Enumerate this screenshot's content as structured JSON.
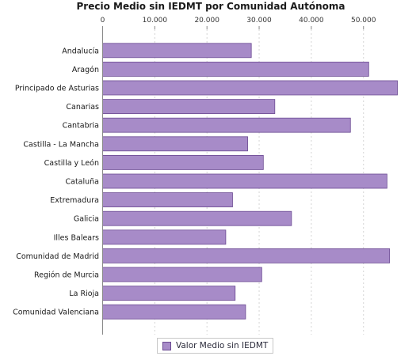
{
  "chart_data": {
    "type": "bar",
    "orientation": "horizontal",
    "title": "Precio Medio sin IEDMT por Comunidad Autónoma",
    "categories": [
      "Andalucía",
      "Aragón",
      "Principado de Asturias",
      "Canarias",
      "Cantabria",
      "Castilla - La Mancha",
      "Castilla y León",
      "Cataluña",
      "Extremadura",
      "Galicia",
      "Illes Balears",
      "Comunidad de Madrid",
      "Región de Murcia",
      "La Rioja",
      "Comunidad Valenciana"
    ],
    "series": [
      {
        "name": "Valor Medio sin IEDMT",
        "values": [
          28500,
          51000,
          56500,
          33000,
          47500,
          27800,
          30800,
          54500,
          24900,
          36200,
          23600,
          55000,
          30500,
          25400,
          27400
        ]
      }
    ],
    "xlim": [
      0,
      59000
    ],
    "xticks": [
      0,
      10000,
      20000,
      30000,
      40000,
      50000
    ],
    "xtick_labels": [
      "0",
      "10.000",
      "20.000",
      "30.000",
      "40.000",
      "50.000"
    ],
    "x_axis_position": "top",
    "grid": "vertical dashed",
    "legend_position": "bottom-center",
    "bar_color": "#a78bc8",
    "bar_edge_color": "#6b4a92"
  }
}
